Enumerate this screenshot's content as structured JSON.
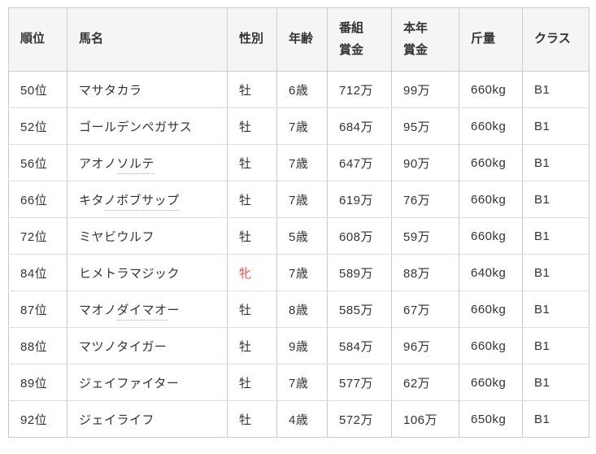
{
  "colors": {
    "female_sex_red": "#e25555",
    "header_bg": "#f5f5f6",
    "border": "#cccccc",
    "text": "#333333"
  },
  "table": {
    "columns": [
      {
        "key": "rank",
        "label": "順位"
      },
      {
        "key": "horse_name",
        "label": "馬名"
      },
      {
        "key": "sex",
        "label": "性別"
      },
      {
        "key": "age",
        "label": "年齢"
      },
      {
        "key": "program_prize",
        "label": "番組\n賞金"
      },
      {
        "key": "year_prize",
        "label": "本年\n賞金"
      },
      {
        "key": "weight",
        "label": "斤量"
      },
      {
        "key": "class",
        "label": "クラス"
      }
    ],
    "rows": [
      {
        "rank": "50位",
        "name_parts": [
          {
            "text": "マサタカラ",
            "underline": false
          }
        ],
        "sex": "牡",
        "sex_female": false,
        "age": "6歳",
        "program_prize": "712万",
        "year_prize": "99万",
        "weight": "660kg",
        "class": "B1"
      },
      {
        "rank": "52位",
        "name_parts": [
          {
            "text": "ゴールデンペガサス",
            "underline": false
          }
        ],
        "sex": "牡",
        "sex_female": false,
        "age": "7歳",
        "program_prize": "684万",
        "year_prize": "95万",
        "weight": "660kg",
        "class": "B1"
      },
      {
        "rank": "56位",
        "name_parts": [
          {
            "text": "アオノ",
            "underline": false
          },
          {
            "text": "ソルテ",
            "underline": true
          }
        ],
        "sex": "牡",
        "sex_female": false,
        "age": "7歳",
        "program_prize": "647万",
        "year_prize": "90万",
        "weight": "660kg",
        "class": "B1"
      },
      {
        "rank": "66位",
        "name_parts": [
          {
            "text": "キタ",
            "underline": false
          },
          {
            "text": "ノボブサップ",
            "underline": true
          }
        ],
        "sex": "牡",
        "sex_female": false,
        "age": "7歳",
        "program_prize": "619万",
        "year_prize": "76万",
        "weight": "660kg",
        "class": "B1"
      },
      {
        "rank": "72位",
        "name_parts": [
          {
            "text": "ミヤビウルフ",
            "underline": false
          }
        ],
        "sex": "牡",
        "sex_female": false,
        "age": "5歳",
        "program_prize": "608万",
        "year_prize": "59万",
        "weight": "660kg",
        "class": "B1"
      },
      {
        "rank": "84位",
        "name_parts": [
          {
            "text": "ヒメトラマジック",
            "underline": false
          }
        ],
        "sex": "牝",
        "sex_female": true,
        "age": "7歳",
        "program_prize": "589万",
        "year_prize": "88万",
        "weight": "640kg",
        "class": "B1"
      },
      {
        "rank": "87位",
        "name_parts": [
          {
            "text": "マオノ",
            "underline": false
          },
          {
            "text": "ダイマオ",
            "underline": true
          },
          {
            "text": "ー",
            "underline": false
          }
        ],
        "sex": "牡",
        "sex_female": false,
        "age": "8歳",
        "program_prize": "585万",
        "year_prize": "67万",
        "weight": "660kg",
        "class": "B1"
      },
      {
        "rank": "88位",
        "name_parts": [
          {
            "text": "マツノタイガー",
            "underline": false
          }
        ],
        "sex": "牡",
        "sex_female": false,
        "age": "9歳",
        "program_prize": "584万",
        "year_prize": "96万",
        "weight": "660kg",
        "class": "B1"
      },
      {
        "rank": "89位",
        "name_parts": [
          {
            "text": "ジェイファイター",
            "underline": false
          }
        ],
        "sex": "牡",
        "sex_female": false,
        "age": "7歳",
        "program_prize": "577万",
        "year_prize": "62万",
        "weight": "660kg",
        "class": "B1"
      },
      {
        "rank": "92位",
        "name_parts": [
          {
            "text": "ジェイライフ",
            "underline": false
          }
        ],
        "sex": "牡",
        "sex_female": false,
        "age": "4歳",
        "program_prize": "572万",
        "year_prize": "106万",
        "weight": "650kg",
        "class": "B1"
      }
    ]
  }
}
